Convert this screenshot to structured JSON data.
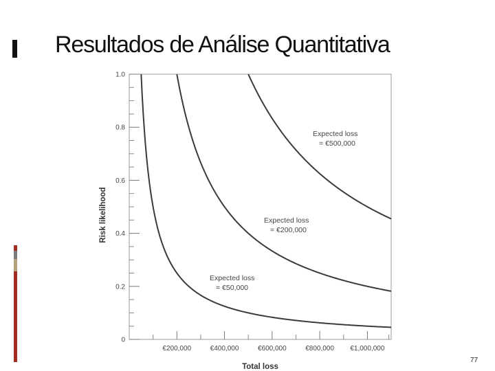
{
  "slide": {
    "title": "Resultados de Análise Quantitativa",
    "page_number": "77",
    "accent_colors": [
      "#a52a21",
      "#7a7a7a",
      "#b5a27a",
      "#a52a21"
    ]
  },
  "chart_data": {
    "type": "line",
    "title": "",
    "xlabel": "Total loss",
    "ylabel": "Risk likelihood",
    "xlim": [
      0,
      1100000
    ],
    "ylim": [
      0,
      1.0
    ],
    "x_ticks": [
      {
        "value": 200000,
        "label": "€200,000"
      },
      {
        "value": 400000,
        "label": "€400,000"
      },
      {
        "value": 600000,
        "label": "€600,000"
      },
      {
        "value": 800000,
        "label": "€800,000"
      },
      {
        "value": 1000000,
        "label": "€1,000,000"
      }
    ],
    "y_ticks": [
      {
        "value": 0,
        "label": "0"
      },
      {
        "value": 0.2,
        "label": "0.2"
      },
      {
        "value": 0.4,
        "label": "0.4"
      },
      {
        "value": 0.6,
        "label": "0.6"
      },
      {
        "value": 0.8,
        "label": "0.8"
      },
      {
        "value": 1.0,
        "label": "1.0"
      }
    ],
    "grid": false,
    "series": [
      {
        "expected_loss": 50000,
        "annotation": [
          "Expected loss",
          "= €50,000"
        ]
      },
      {
        "expected_loss": 200000,
        "annotation": [
          "Expected loss",
          "= €200,000"
        ]
      },
      {
        "expected_loss": 500000,
        "annotation": [
          "Expected loss",
          "= €500,000"
        ]
      }
    ]
  }
}
